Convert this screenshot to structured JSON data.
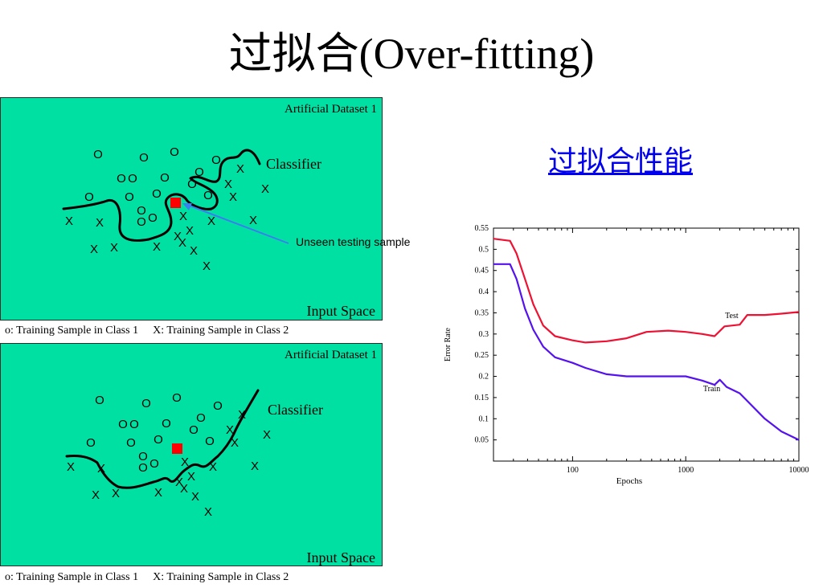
{
  "title": "过拟合(Over-fitting)",
  "link_text": "过拟合性能",
  "panels": [
    {
      "dataset_label": "Artificial Dataset 1",
      "classifier_label": "Classifier",
      "space_label": "Input Space",
      "callout": "Unseen testing sample",
      "legend_o": "o: Training Sample in Class 1",
      "legend_x": "X: Training Sample in Class 2"
    },
    {
      "dataset_label": "Artificial Dataset 1",
      "classifier_label": "Classifier",
      "space_label": "Input Space",
      "legend_o": "o: Training Sample in Class 1",
      "legend_x": "X: Training Sample in Class 2"
    }
  ],
  "class1_symbol": "O",
  "class2_symbol": "X",
  "colors": {
    "panel_bg": "#00e0a3",
    "test_sample": "#ff0000",
    "arrow": "#3a7ff0",
    "test_line": "#ee1133",
    "train_line": "#5511ee"
  },
  "chart_data": {
    "type": "line",
    "xlabel": "Epochs",
    "ylabel": "Error Rate",
    "x_scale": "log",
    "xlim": [
      20,
      10000
    ],
    "ylim": [
      0,
      0.55
    ],
    "xticks": [
      "100",
      "1000",
      "10000"
    ],
    "yticks": [
      "0.05",
      "0.1",
      "0.15",
      "0.2",
      "0.25",
      "0.3",
      "0.35",
      "0.4",
      "0.45",
      "0.5",
      "0.55"
    ],
    "series": [
      {
        "name": "Test",
        "x": [
          20,
          28,
          32,
          38,
          45,
          55,
          70,
          100,
          130,
          200,
          300,
          450,
          700,
          1000,
          1400,
          1800,
          2200,
          3000,
          3500,
          5000,
          7000,
          10000
        ],
        "y": [
          0.525,
          0.52,
          0.49,
          0.43,
          0.37,
          0.32,
          0.295,
          0.285,
          0.28,
          0.283,
          0.29,
          0.305,
          0.308,
          0.305,
          0.3,
          0.295,
          0.318,
          0.322,
          0.345,
          0.345,
          0.348,
          0.352
        ]
      },
      {
        "name": "Train",
        "x": [
          20,
          28,
          32,
          38,
          45,
          55,
          70,
          100,
          130,
          200,
          300,
          500,
          800,
          1000,
          1400,
          1800,
          2000,
          2300,
          3000,
          5000,
          7000,
          10000
        ],
        "y": [
          0.465,
          0.465,
          0.43,
          0.36,
          0.31,
          0.27,
          0.245,
          0.232,
          0.22,
          0.205,
          0.2,
          0.2,
          0.2,
          0.2,
          0.19,
          0.18,
          0.192,
          0.175,
          0.16,
          0.1,
          0.07,
          0.05
        ]
      }
    ]
  }
}
